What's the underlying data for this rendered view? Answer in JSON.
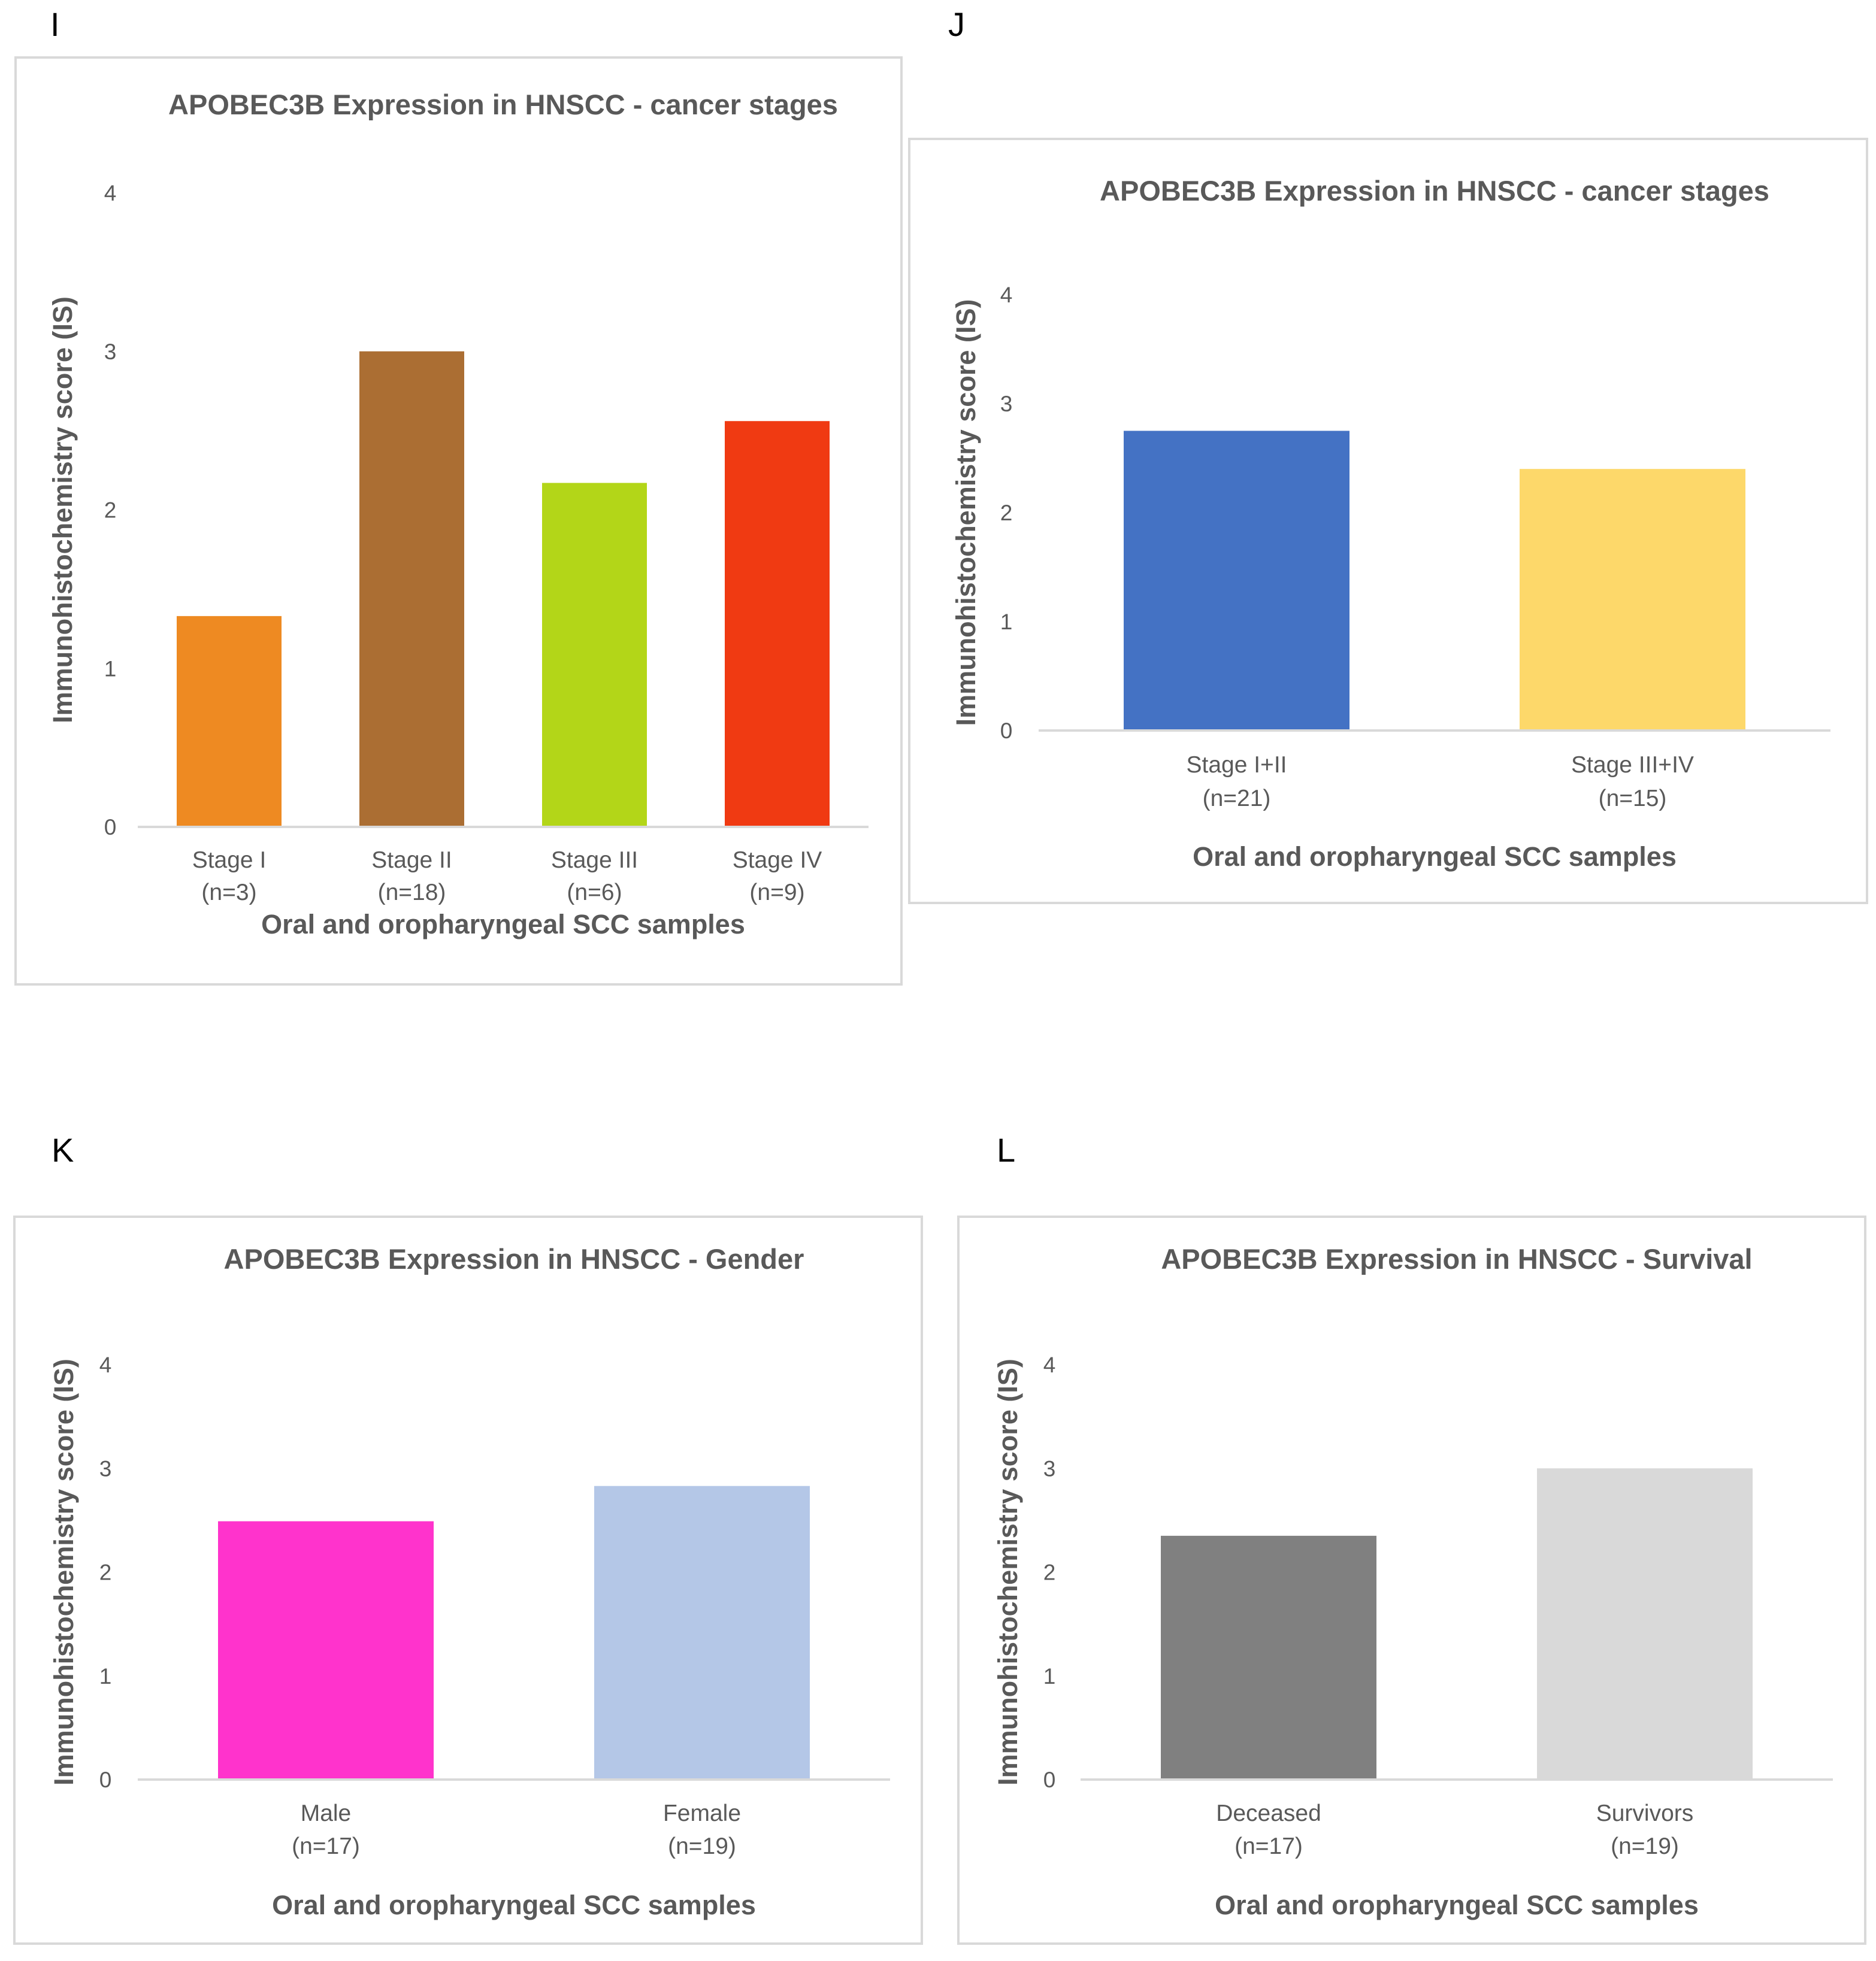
{
  "panels": [
    {
      "letter": "I",
      "chart_data": {
        "type": "bar",
        "title": "APOBEC3B Expression in HNSCC - cancer stages",
        "xlabel": "Oral and oropharyngeal SCC samples",
        "ylabel": "Immunohistochemistry score (IS)",
        "ylim": [
          0,
          4
        ],
        "yticks": [
          0,
          1,
          2,
          3,
          4
        ],
        "categories": [
          "Stage I",
          "Stage II",
          "Stage III",
          "Stage IV"
        ],
        "category_n": [
          "(n=3)",
          "(n=18)",
          "(n=6)",
          "(n=9)"
        ],
        "values": [
          1.33,
          3.0,
          2.17,
          2.56
        ],
        "colors": [
          "#ee8a22",
          "#ab6e33",
          "#b3d618",
          "#f03a12"
        ],
        "grid": false
      }
    },
    {
      "letter": "J",
      "chart_data": {
        "type": "bar",
        "title": "APOBEC3B Expression in HNSCC - cancer stages",
        "xlabel": "Oral and oropharyngeal SCC samples",
        "ylabel": "Immunohistochemistry score (IS)",
        "ylim": [
          0,
          4
        ],
        "yticks": [
          0,
          1,
          2,
          3,
          4
        ],
        "categories": [
          "Stage I+II",
          "Stage III+IV"
        ],
        "category_n": [
          "(n=21)",
          "(n=15)"
        ],
        "values": [
          2.75,
          2.4
        ],
        "colors": [
          "#4472c4",
          "#fdd86a"
        ],
        "grid": false
      }
    },
    {
      "letter": "K",
      "chart_data": {
        "type": "bar",
        "title": "APOBEC3B Expression in HNSCC - Gender",
        "xlabel": "Oral and oropharyngeal SCC samples",
        "ylabel": "Immunohistochemistry score (IS)",
        "ylim": [
          0,
          4
        ],
        "yticks": [
          0,
          1,
          2,
          3,
          4
        ],
        "categories": [
          "Male",
          "Female"
        ],
        "category_n": [
          "(n=17)",
          "(n=19)"
        ],
        "values": [
          2.49,
          2.83
        ],
        "colors": [
          "#ff33cc",
          "#b4c7e7"
        ],
        "grid": false
      }
    },
    {
      "letter": "L",
      "chart_data": {
        "type": "bar",
        "title": "APOBEC3B Expression in HNSCC - Survival",
        "xlabel": "Oral and oropharyngeal SCC samples",
        "ylabel": "Immunohistochemistry score (IS)",
        "ylim": [
          0,
          4
        ],
        "yticks": [
          0,
          1,
          2,
          3,
          4
        ],
        "categories": [
          "Deceased",
          "Survivors"
        ],
        "category_n": [
          "(n=17)",
          "(n=19)"
        ],
        "values": [
          2.35,
          3.0
        ],
        "colors": [
          "#808080",
          "#d9d9d9"
        ],
        "grid": false
      }
    }
  ]
}
